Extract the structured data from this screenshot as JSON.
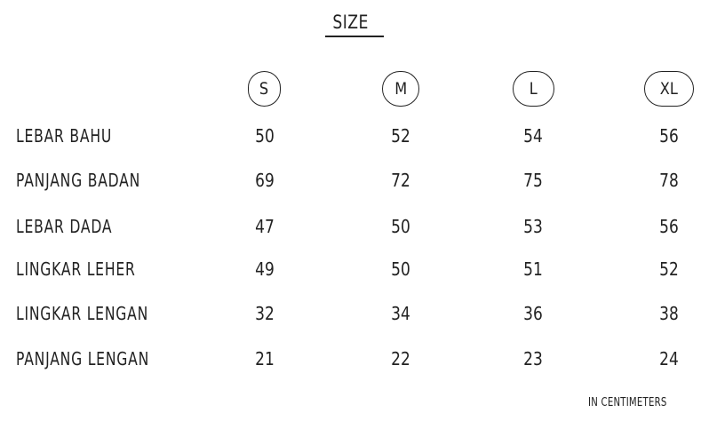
{
  "title": "SIZE",
  "sizes": [
    "S",
    "M",
    "L",
    "XL"
  ],
  "rows": [
    {
      "label": "LEBAR BAHU",
      "values": [
        "50",
        "52",
        "54",
        "56"
      ]
    },
    {
      "label": "PANJANG BADAN",
      "values": [
        "69",
        "72",
        "75",
        "78"
      ]
    },
    {
      "label": "LEBAR DADA",
      "values": [
        "47",
        "50",
        "53",
        "56"
      ]
    },
    {
      "label": "LINGKAR LEHER",
      "values": [
        "49",
        "50",
        "51",
        "52"
      ]
    },
    {
      "label": "LINGKAR LENGAN",
      "values": [
        "32",
        "34",
        "36",
        "38"
      ]
    },
    {
      "label": "PANJANG LENGAN",
      "values": [
        "21",
        "22",
        "23",
        "24"
      ]
    }
  ],
  "footnote": "IN CENTIMETERS"
}
